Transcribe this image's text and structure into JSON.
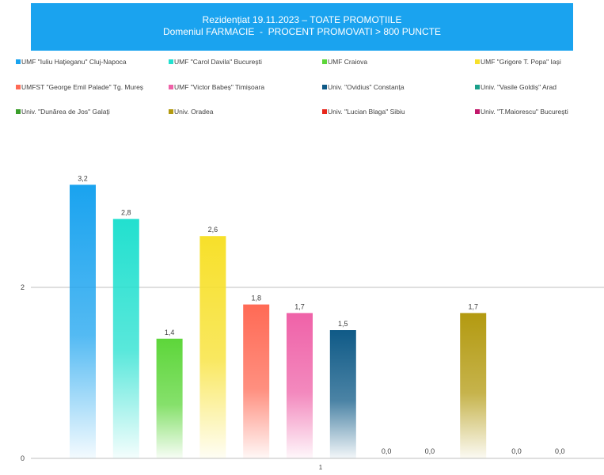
{
  "title": {
    "line1": "Rezidențiat 19.11.2023 – TOATE PROMOȚIILE",
    "line2": "Domeniul FARMACIE  -  PROCENT PROMOVATI > 800 PUNCTE"
  },
  "chart_data": {
    "type": "bar",
    "categories": [
      "1"
    ],
    "ylim": [
      0,
      3.5
    ],
    "yticks": [
      0,
      2
    ],
    "grid": true,
    "legend_position": "top",
    "series": [
      {
        "name": "UMF \"Iuliu Hațieganu\" Cluj-Napoca",
        "value": 3.2,
        "label": "3,2",
        "color": "#1aa3ef"
      },
      {
        "name": "UMF \"Carol Davila\" București",
        "value": 2.8,
        "label": "2,8",
        "color": "#22e0cf"
      },
      {
        "name": "UMF Craiova",
        "value": 1.4,
        "label": "1,4",
        "color": "#5dd63a"
      },
      {
        "name": "UMF \"Grigore T. Popa\" Iași",
        "value": 2.6,
        "label": "2,6",
        "color": "#f7e02a"
      },
      {
        "name": "UMFST \"George Emil Palade\" Tg. Mureș",
        "value": 1.8,
        "label": "1,8",
        "color": "#ff6a55"
      },
      {
        "name": "UMF \"Victor Babeș\" Timișoara",
        "value": 1.7,
        "label": "1,7",
        "color": "#ef62a8"
      },
      {
        "name": "Univ. \"Ovidius\" Constanța",
        "value": 1.5,
        "label": "1,5",
        "color": "#0f5a87"
      },
      {
        "name": "Univ. \"Vasile Goldiș\" Arad",
        "value": 0.0,
        "label": "0,0",
        "color": "#1a9f8a"
      },
      {
        "name": "Univ. \"Dunărea de Jos\" Galați",
        "value": 0.0,
        "label": "0,0",
        "color": "#3a9e2a"
      },
      {
        "name": "Univ. Oradea",
        "value": 1.7,
        "label": "1,7",
        "color": "#b39a10"
      },
      {
        "name": "Univ. \"Lucian Blaga\" Sibiu",
        "value": 0.0,
        "label": "0,0",
        "color": "#e8271c"
      },
      {
        "name": "Univ. \"T.Maiorescu\" București",
        "value": 0.0,
        "label": "0,0",
        "color": "#c2186b"
      }
    ]
  }
}
